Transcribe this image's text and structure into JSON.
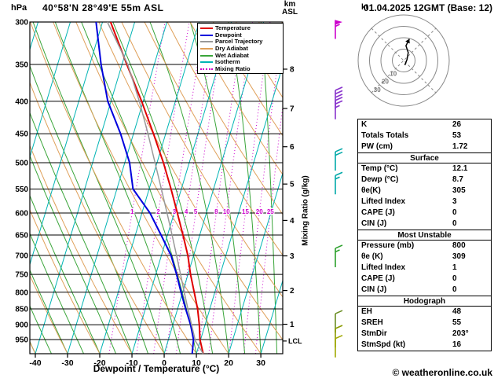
{
  "header": {
    "pressure_unit": "hPa",
    "station": "40°58'N 28°49'E 55m ASL",
    "datetime": "01.04.2025 12GMT (Base: 12)",
    "altitude_unit_line1": "km",
    "altitude_unit_line2": "ASL"
  },
  "axes": {
    "pressure_ticks": [
      300,
      350,
      400,
      450,
      500,
      550,
      600,
      650,
      700,
      750,
      800,
      850,
      900,
      950
    ],
    "km_ticks": [
      8,
      7,
      6,
      5,
      4,
      3,
      2,
      1
    ],
    "lcl_label": "LCL",
    "temp_ticks": [
      -40,
      -30,
      -20,
      -10,
      0,
      10,
      20,
      30
    ],
    "xlabel": "Dewpoint / Temperature (°C)",
    "mix_label": "Mixing Ratio (g/kg)",
    "mixing_ratios": [
      1,
      2,
      3,
      4,
      5,
      8,
      10,
      15,
      20,
      25
    ]
  },
  "legend": {
    "items": [
      {
        "key": "temperature",
        "label": "Temperature",
        "color": "#e00000",
        "dash": false
      },
      {
        "key": "dewpoint",
        "label": "Dewpoint",
        "color": "#0000dd",
        "dash": false
      },
      {
        "key": "parcel",
        "label": "Parcel Trajectory",
        "color": "#999999",
        "dash": false
      },
      {
        "key": "dry-adiabat",
        "label": "Dry Adiabat",
        "color": "#dfa05a",
        "dash": false
      },
      {
        "key": "wet-adiabat",
        "label": "Wet Adiabat",
        "color": "#3aa53a",
        "dash": false
      },
      {
        "key": "isotherm",
        "label": "Isotherm",
        "color": "#00b4b4",
        "dash": false
      },
      {
        "key": "mixing-ratio",
        "label": "Mixing Ratio",
        "color": "#cc00cc",
        "dash": true
      }
    ]
  },
  "hodograph": {
    "unit_label": "kt",
    "rings_kt": [
      10,
      20,
      30,
      40
    ],
    "ring_labels": [
      "10",
      "20",
      "30"
    ]
  },
  "table": {
    "rows": [
      {
        "type": "kv",
        "label": "K",
        "value": "26"
      },
      {
        "type": "kv",
        "label": "Totals Totals",
        "value": "53"
      },
      {
        "type": "kv",
        "label": "PW (cm)",
        "value": "1.72"
      },
      {
        "type": "header",
        "label": "Surface"
      },
      {
        "type": "kv",
        "label": "Temp (°C)",
        "value": "12.1"
      },
      {
        "type": "kv",
        "label": "Dewp (°C)",
        "value": "8.7"
      },
      {
        "type": "kv",
        "label": "θe(K)",
        "value": "305"
      },
      {
        "type": "kv",
        "label": "Lifted Index",
        "value": "3"
      },
      {
        "type": "kv",
        "label": "CAPE (J)",
        "value": "0"
      },
      {
        "type": "kv",
        "label": "CIN (J)",
        "value": "0"
      },
      {
        "type": "header",
        "label": "Most Unstable"
      },
      {
        "type": "kv",
        "label": "Pressure (mb)",
        "value": "800"
      },
      {
        "type": "kv",
        "label": "θe (K)",
        "value": "309"
      },
      {
        "type": "kv",
        "label": "Lifted Index",
        "value": "1"
      },
      {
        "type": "kv",
        "label": "CAPE (J)",
        "value": "0"
      },
      {
        "type": "kv",
        "label": "CIN (J)",
        "value": "0"
      },
      {
        "type": "header",
        "label": "Hodograph"
      },
      {
        "type": "kv",
        "label": "EH",
        "value": "48"
      },
      {
        "type": "kv",
        "label": "SREH",
        "value": "55"
      },
      {
        "type": "kv",
        "label": "StmDir",
        "value": "203°"
      },
      {
        "type": "kv",
        "label": "StmSpd (kt)",
        "value": "16"
      }
    ]
  },
  "footer": {
    "copyright": "© weatheronline.co.uk"
  },
  "chart_data": {
    "type": "line",
    "title": "Skew-T log-P sounding",
    "x_axis": {
      "label": "Dewpoint / Temperature (°C)",
      "min": -41.7,
      "max": 36.8
    },
    "y_axis": {
      "label": "hPa",
      "min": 300,
      "max": 1000,
      "scale": "log"
    },
    "skew": 0.3,
    "lcl_pressure": 955,
    "barb_x": 427,
    "colors": {
      "isotherm": "#00b4b4",
      "dry": "#dfa05a",
      "wet": "#3aa53a",
      "mixing": "#cc00cc",
      "grid": "#000000"
    },
    "series": [
      {
        "name": "Temperature",
        "color": "#e00000",
        "width": 2,
        "points": [
          [
            1000,
            12.1
          ],
          [
            950,
            9.8
          ],
          [
            900,
            8.2
          ],
          [
            850,
            6.2
          ],
          [
            800,
            3.6
          ],
          [
            750,
            0.8
          ],
          [
            700,
            -1.8
          ],
          [
            650,
            -5.2
          ],
          [
            600,
            -9
          ],
          [
            550,
            -13.2
          ],
          [
            500,
            -18
          ],
          [
            450,
            -23.8
          ],
          [
            400,
            -30.5
          ],
          [
            350,
            -38.5
          ],
          [
            300,
            -47.5
          ]
        ]
      },
      {
        "name": "Dewpoint",
        "color": "#0000dd",
        "width": 2,
        "points": [
          [
            1000,
            8.7
          ],
          [
            950,
            7.8
          ],
          [
            900,
            5.5
          ],
          [
            850,
            2.5
          ],
          [
            800,
            -0.5
          ],
          [
            750,
            -3.5
          ],
          [
            700,
            -7
          ],
          [
            650,
            -12
          ],
          [
            600,
            -17.5
          ],
          [
            550,
            -25
          ],
          [
            500,
            -28.5
          ],
          [
            450,
            -34
          ],
          [
            400,
            -41
          ],
          [
            350,
            -46.5
          ],
          [
            300,
            -52
          ]
        ]
      },
      {
        "name": "Parcel Trajectory",
        "color": "#999999",
        "width": 1.5,
        "points": [
          [
            1000,
            12.1
          ],
          [
            955,
            8.5
          ],
          [
            900,
            5.8
          ],
          [
            850,
            3.2
          ],
          [
            800,
            0.5
          ],
          [
            750,
            -2.3
          ],
          [
            700,
            -5.3
          ],
          [
            650,
            -8.6
          ],
          [
            600,
            -12.2
          ],
          [
            550,
            -16.2
          ],
          [
            500,
            -20.6
          ],
          [
            450,
            -25.5
          ],
          [
            400,
            -31.2
          ],
          [
            350,
            -38.2
          ],
          [
            300,
            -48.5
          ]
        ]
      }
    ],
    "wind_barbs": [
      {
        "p": 310,
        "speed_kt": 55,
        "color": "#cc00cc"
      },
      {
        "p": 400,
        "speed_kt": 30,
        "color": "#8833cc"
      },
      {
        "p": 415,
        "speed_kt": 25,
        "color": "#8833cc"
      },
      {
        "p": 500,
        "speed_kt": 20,
        "color": "#00a8a8"
      },
      {
        "p": 545,
        "speed_kt": 15,
        "color": "#00a8a8"
      },
      {
        "p": 710,
        "speed_kt": 15,
        "color": "#2aa02a"
      },
      {
        "p": 900,
        "speed_kt": 10,
        "color": "#6b8e23"
      },
      {
        "p": 950,
        "speed_kt": 10,
        "color": "#8a9a00"
      },
      {
        "p": 985,
        "speed_kt": 12,
        "color": "#a0a800"
      }
    ],
    "hodograph_trace": [
      [
        1,
        -4
      ],
      [
        3,
        1
      ],
      [
        4,
        7
      ],
      [
        2,
        13
      ],
      [
        5,
        19
      ]
    ]
  }
}
